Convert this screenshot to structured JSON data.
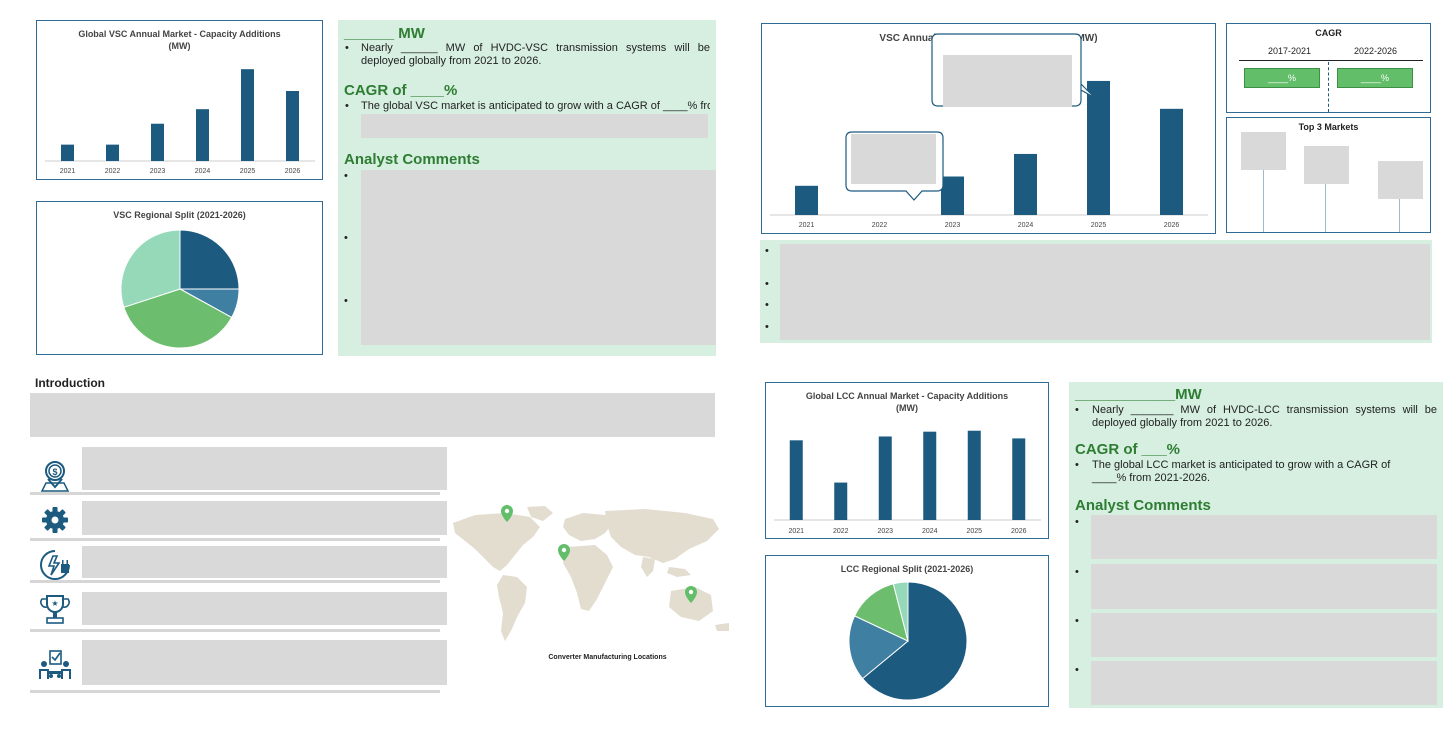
{
  "vsc_annual": {
    "title": "Global VSC Annual Market - Capacity Additions (MW)",
    "chart_data": {
      "type": "bar",
      "title": "Global VSC Annual Market - Capacity Additions (MW)",
      "categories": [
        "2021",
        "2022",
        "2023",
        "2024",
        "2025",
        "2026"
      ],
      "values": [
        1.8,
        1.8,
        4.1,
        5.7,
        10.1,
        7.7
      ],
      "ylim": [
        0,
        11
      ],
      "color": "#1c5a80"
    }
  },
  "vsc_split": {
    "title": "VSC Regional Split (2021-2026)",
    "chart_data": {
      "type": "pie",
      "title": "VSC Regional Split (2021-2026)",
      "values": [
        25,
        8,
        37,
        30
      ],
      "colors": [
        "#1c5a80",
        "#3f7fa2",
        "#6cbe6e",
        "#95d9b9"
      ]
    }
  },
  "vsc_summary": {
    "mw_heading": "______ MW",
    "mw_text": "Nearly ______ MW of HVDC-VSC transmission systems will be deployed globally from 2021 to 2026.",
    "cagr_heading": "CAGR of ____%",
    "cagr_text": "The global VSC market is anticipated to grow with a CAGR of ____% from",
    "comments_heading": "Analyst Comments"
  },
  "vsc_right": {
    "title": "VSC Annual Market - Capacity Additions (MW)",
    "chart_data": {
      "type": "bar",
      "title": "VSC Annual Market - Capacity Additions (MW)",
      "categories": [
        "2021",
        "2022",
        "2023",
        "2024",
        "2025",
        "2026"
      ],
      "values": [
        2.2,
        0,
        2.9,
        4.6,
        10.1,
        8.0
      ],
      "ylim": [
        0,
        11
      ],
      "color": "#1c5a80"
    }
  },
  "cagr_panel": {
    "title": "CAGR",
    "period1": "2017-2021",
    "period2": "2022-2026",
    "value1": "____%",
    "value2": "____%"
  },
  "top_markets": {
    "title": "Top 3 Markets"
  },
  "introduction": {
    "heading": "Introduction"
  },
  "map": {
    "caption": "Converter Manufacturing Locations"
  },
  "lcc_annual": {
    "title": "Global LCC Annual Market - Capacity Additions (MW)",
    "chart_data": {
      "type": "bar",
      "title": "Global LCC Annual Market - Capacity Additions (MW)",
      "categories": [
        "2021",
        "2022",
        "2023",
        "2024",
        "2025",
        "2026"
      ],
      "values": [
        8.3,
        3.9,
        8.7,
        9.2,
        9.3,
        8.5
      ],
      "ylim": [
        0,
        10
      ],
      "color": "#1c5a80"
    }
  },
  "lcc_split": {
    "title": "LCC Regional Split (2021-2026)",
    "chart_data": {
      "type": "pie",
      "title": "LCC Regional Split (2021-2026)",
      "values": [
        64,
        18,
        14,
        4
      ],
      "colors": [
        "#1c5a80",
        "#3f7fa2",
        "#6cbe6e",
        "#95d9b9"
      ]
    }
  },
  "lcc_summary": {
    "mw_heading": "____________MW",
    "mw_text": "Nearly _______ MW of HVDC-LCC transmission systems will be deployed globally from 2021 to 2026.",
    "cagr_heading": "CAGR of ___%",
    "cagr_text": "The global LCC market is anticipated to grow with a CAGR of ____% from 2021-2026.",
    "comments_heading": "Analyst Comments"
  },
  "icons": [
    "dollar-location-icon",
    "gear-icon",
    "power-plug-icon",
    "trophy-icon",
    "team-checklist-icon"
  ]
}
